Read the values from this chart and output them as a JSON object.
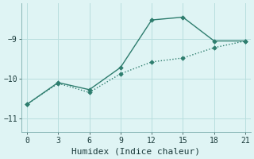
{
  "line1_x": [
    0,
    3,
    6,
    9,
    12,
    15,
    18,
    21
  ],
  "line1_y": [
    -10.65,
    -10.1,
    -10.28,
    -9.72,
    -8.52,
    -8.45,
    -9.05,
    -9.05
  ],
  "line1_marker_x": [
    0,
    3,
    6,
    9,
    12,
    15,
    18,
    21
  ],
  "line1_marker_y": [
    -10.65,
    -10.1,
    -10.28,
    -9.72,
    -8.52,
    -8.45,
    -9.05,
    -9.05
  ],
  "line2_x": [
    0,
    3,
    6,
    9,
    12,
    15,
    18,
    21
  ],
  "line2_y": [
    -10.65,
    -10.12,
    -10.35,
    -9.88,
    -9.58,
    -9.48,
    -9.22,
    -9.05
  ],
  "line_color": "#2e7d6e",
  "bg_color": "#dff4f4",
  "grid_color": "#b8dede",
  "xlabel": "Humidex (Indice chaleur)",
  "xlim": [
    -0.5,
    21.5
  ],
  "ylim": [
    -11.35,
    -8.1
  ],
  "xticks": [
    0,
    3,
    6,
    9,
    12,
    15,
    18,
    21
  ],
  "yticks": [
    -11,
    -10,
    -9
  ],
  "marker": "D",
  "markersize": 2.8,
  "linewidth": 1.0,
  "font_size_ticks": 7,
  "font_size_xlabel": 8
}
